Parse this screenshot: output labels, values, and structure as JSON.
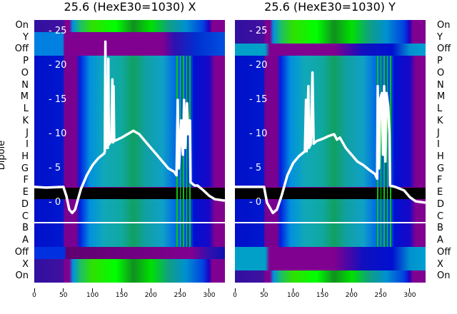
{
  "chart_data": [
    {
      "type": "heatmap",
      "title": "25.6 (HexE30=1030) X",
      "ylabel": "Dipole",
      "row_labels": [
        "On",
        "Y",
        "Off",
        "P",
        "O",
        "N",
        "M",
        "L",
        "K",
        "J",
        "I",
        "H",
        "G",
        "F",
        "E",
        "D",
        "C",
        "B",
        "A",
        "Off",
        "X",
        "On"
      ],
      "row_kinds": [
        "green",
        "purple",
        "purple",
        "main",
        "main",
        "main",
        "main",
        "main",
        "main",
        "main",
        "main",
        "main",
        "main",
        "main",
        "black",
        "main",
        "main",
        "main",
        "main",
        "blueoff",
        "green",
        "green"
      ],
      "xlim": [
        0,
        327
      ],
      "xticks": [
        "0",
        "50",
        "100",
        "150",
        "200",
        "250",
        "300"
      ],
      "overlay_ylim": [
        -1.5,
        25.5
      ],
      "overlay_yticks": [
        "0",
        "5",
        "10",
        "15",
        "20",
        "25"
      ],
      "separator_after_row": "C",
      "line": [
        [
          0,
          2.3
        ],
        [
          20,
          2.2
        ],
        [
          50,
          2.3
        ],
        [
          55,
          1
        ],
        [
          60,
          -1
        ],
        [
          65,
          -1.5
        ],
        [
          70,
          -1
        ],
        [
          75,
          0.5
        ],
        [
          80,
          2
        ],
        [
          90,
          4
        ],
        [
          100,
          5.5
        ],
        [
          110,
          6.5
        ],
        [
          120,
          7.2
        ],
        [
          121,
          7.5
        ],
        [
          122,
          23.5
        ],
        [
          123,
          8
        ],
        [
          126,
          8
        ],
        [
          127,
          21
        ],
        [
          128,
          8.5
        ],
        [
          132,
          9
        ],
        [
          134,
          18
        ],
        [
          135,
          8.8
        ],
        [
          136,
          17
        ],
        [
          137,
          9
        ],
        [
          150,
          9.5
        ],
        [
          160,
          10
        ],
        [
          170,
          10.5
        ],
        [
          180,
          10
        ],
        [
          190,
          9
        ],
        [
          200,
          8
        ],
        [
          210,
          7
        ],
        [
          220,
          6
        ],
        [
          230,
          5
        ],
        [
          240,
          4.5
        ],
        [
          244,
          4
        ],
        [
          246,
          15
        ],
        [
          248,
          5
        ],
        [
          252,
          12
        ],
        [
          255,
          7
        ],
        [
          257,
          15
        ],
        [
          259,
          8
        ],
        [
          262,
          14.5
        ],
        [
          264,
          10
        ],
        [
          267,
          12
        ],
        [
          268,
          3
        ],
        [
          275,
          2.5
        ],
        [
          280,
          2.5
        ],
        [
          290,
          1.8
        ],
        [
          300,
          1
        ],
        [
          310,
          0.5
        ],
        [
          327,
          0.3
        ]
      ]
    },
    {
      "type": "heatmap",
      "title": "25.6 (HexE30=1030) Y",
      "row_labels": [
        "On",
        "Y",
        "Off",
        "P",
        "O",
        "N",
        "M",
        "L",
        "K",
        "J",
        "I",
        "H",
        "G",
        "F",
        "E",
        "D",
        "C",
        "B",
        "A",
        "Off",
        "X",
        "On"
      ],
      "row_kinds": [
        "green",
        "green",
        "cyan",
        "main",
        "main",
        "main",
        "main",
        "main",
        "main",
        "main",
        "main",
        "main",
        "main",
        "main",
        "black",
        "main",
        "main",
        "main",
        "main",
        "cyan",
        "cyan",
        "green"
      ],
      "xlim": [
        0,
        327
      ],
      "xticks": [
        "0",
        "50",
        "100",
        "150",
        "200",
        "250",
        "300"
      ],
      "overlay_ylim": [
        -1.5,
        25.5
      ],
      "overlay_yticks": [
        "0",
        "5",
        "10",
        "15",
        "20",
        "25"
      ],
      "separator_after_row": "C",
      "line": [
        [
          0,
          2.3
        ],
        [
          50,
          2.3
        ],
        [
          55,
          0
        ],
        [
          65,
          -1.5
        ],
        [
          72,
          -1
        ],
        [
          80,
          1
        ],
        [
          90,
          4
        ],
        [
          100,
          5.8
        ],
        [
          110,
          6.8
        ],
        [
          120,
          7.5
        ],
        [
          122,
          15
        ],
        [
          123,
          7.5
        ],
        [
          126,
          17
        ],
        [
          127,
          8
        ],
        [
          130,
          8.5
        ],
        [
          133,
          19
        ],
        [
          135,
          8.6
        ],
        [
          140,
          9
        ],
        [
          150,
          9.3
        ],
        [
          160,
          9.7
        ],
        [
          170,
          10
        ],
        [
          175,
          9.2
        ],
        [
          180,
          9.5
        ],
        [
          190,
          8
        ],
        [
          200,
          7
        ],
        [
          210,
          6
        ],
        [
          220,
          5.5
        ],
        [
          230,
          4.8
        ],
        [
          240,
          4.2
        ],
        [
          244,
          3.5
        ],
        [
          245,
          17
        ],
        [
          247,
          5
        ],
        [
          249,
          15
        ],
        [
          252,
          16
        ],
        [
          254,
          7
        ],
        [
          256,
          17
        ],
        [
          258,
          6
        ],
        [
          260,
          16
        ],
        [
          263,
          14
        ],
        [
          265,
          10
        ],
        [
          266,
          2.5
        ],
        [
          275,
          2.3
        ],
        [
          290,
          1.8
        ],
        [
          300,
          0.8
        ],
        [
          310,
          0.2
        ],
        [
          327,
          0
        ]
      ]
    }
  ]
}
